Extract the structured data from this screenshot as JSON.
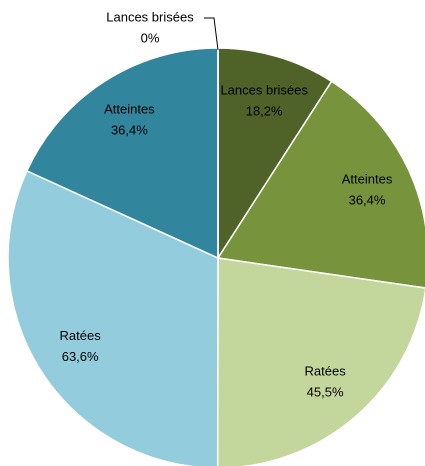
{
  "chart_data": {
    "type": "pie",
    "categories": [
      "Lances brisées",
      "Atteintes",
      "Ratées",
      "Ratées",
      "Atteintes",
      "Lances brisées"
    ],
    "values": [
      18.2,
      36.4,
      45.5,
      63.6,
      36.4,
      0
    ],
    "value_labels": [
      "18,2%",
      "36,4%",
      "45,5%",
      "63,6%",
      "36,4%",
      "0%"
    ],
    "colors": [
      "#4f6228",
      "#77933c",
      "#c3d69b",
      "#93cddd",
      "#31859c",
      "#215968"
    ]
  }
}
